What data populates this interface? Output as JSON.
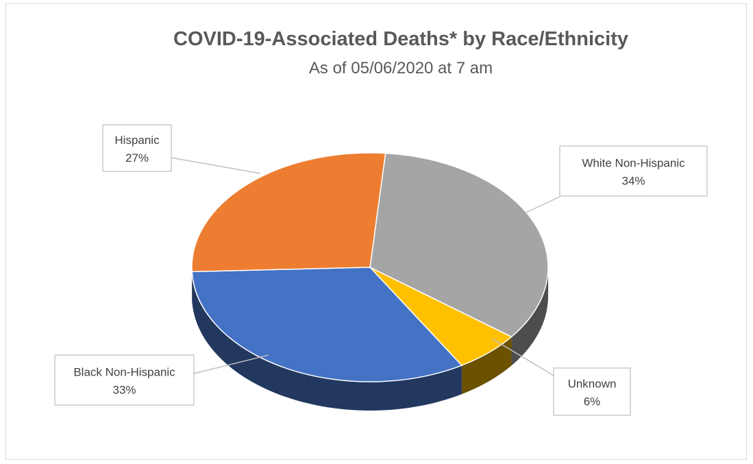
{
  "chart_data": {
    "type": "pie",
    "title": "COVID-19-Associated Deaths* by Race/Ethnicity",
    "subtitle": "As of 05/06/2020 at 7 am",
    "slices": [
      {
        "label": "White Non-Hispanic",
        "value": 34,
        "value_label": "34%",
        "color": "#a5a5a5",
        "side_color": "#4d4d4d"
      },
      {
        "label": "Unknown",
        "value": 6,
        "value_label": "6%",
        "color": "#ffc000",
        "side_color": "#6b5100"
      },
      {
        "label": "Black Non-Hispanic",
        "value": 33,
        "value_label": "33%",
        "color": "#4472c4",
        "side_color": "#22385f"
      },
      {
        "label": "Hispanic",
        "value": 27,
        "value_label": "27%",
        "color": "#ed7d31",
        "side_color": "#8a4516"
      }
    ],
    "start_angle_deg": -85,
    "direction": "clockwise",
    "view": "3d",
    "legend": "none",
    "data_labels": "callouts"
  }
}
